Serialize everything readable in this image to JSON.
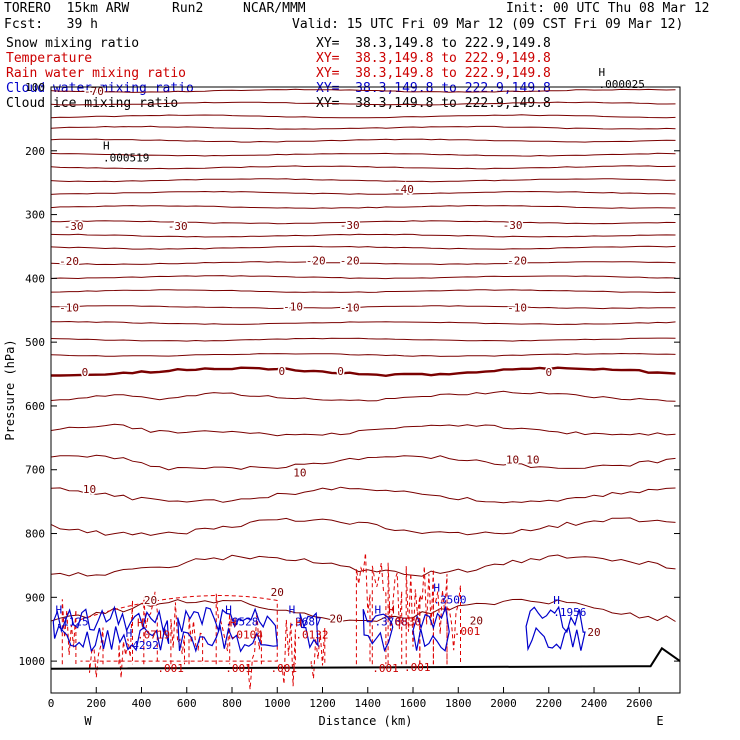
{
  "header": {
    "model": "TORERO  15km ARW",
    "run": "Run2",
    "org": "NCAR/MMM",
    "init": "Init: 00 UTC Thu 08 Mar 12",
    "fcst": "Fcst:   39 h",
    "valid": "Valid: 15 UTC Fri 09 Mar 12 (09 CST Fri 09 Mar 12)"
  },
  "fields": [
    {
      "name": "Snow mixing ratio",
      "xy": "XY=  38.3,149.8 to 222.9,149.8",
      "color": "#000000",
      "xy_color": "#000000"
    },
    {
      "name": "Temperature",
      "xy": "XY=  38.3,149.8 to 222.9,149.8",
      "color": "#cc0000",
      "xy_color": "#cc0000"
    },
    {
      "name": "Rain water mixing ratio",
      "xy": "XY=  38.3,149.8 to 222.9,149.8",
      "color": "#cc0000",
      "xy_color": "#cc0000"
    },
    {
      "name": "Cloud water mixing ratio",
      "xy": "XY=  38.3,149.8 to 222.9,149.8",
      "color": "#0000cc",
      "xy_color": "#0000cc"
    },
    {
      "name": "Cloud ice mixing ratio",
      "xy": "XY=  38.3,149.8 to 222.9,149.8",
      "color": "#000000",
      "xy_color": "#000000"
    }
  ],
  "chart_data": {
    "type": "cross-section",
    "xlabel": "Distance (km)",
    "ylabel": "Pressure (hPa)",
    "xlim": [
      0,
      2780
    ],
    "ylim": [
      1050,
      100
    ],
    "x_ticks": [
      0,
      200,
      400,
      600,
      800,
      1000,
      1200,
      1400,
      1600,
      1800,
      2000,
      2200,
      2400,
      2600
    ],
    "y_ticks": [
      100,
      200,
      300,
      400,
      500,
      600,
      700,
      800,
      900,
      1000
    ],
    "x_end_labels": {
      "left": "W",
      "right": "E"
    },
    "temperature_isotherm_pressures": [
      106,
      126,
      146,
      164,
      184,
      206,
      226,
      246,
      266,
      288,
      312,
      333,
      352,
      376,
      398,
      420,
      445,
      470,
      496,
      520,
      546,
      585,
      638,
      688,
      740,
      790,
      850,
      920
    ],
    "temperature_labels": [
      {
        "text": "-70",
        "x": 190,
        "p": 106
      },
      {
        "text": "-40",
        "x": 1560,
        "p": 260
      },
      {
        "text": "-30",
        "x": 100,
        "p": 318
      },
      {
        "text": "-30",
        "x": 560,
        "p": 318
      },
      {
        "text": "-30",
        "x": 1320,
        "p": 316
      },
      {
        "text": "-30",
        "x": 2040,
        "p": 316
      },
      {
        "text": "-20",
        "x": 80,
        "p": 373
      },
      {
        "text": "-20",
        "x": 1170,
        "p": 372
      },
      {
        "text": "-20",
        "x": 1320,
        "p": 372
      },
      {
        "text": "-20",
        "x": 2060,
        "p": 372
      },
      {
        "text": "-10",
        "x": 80,
        "p": 446
      },
      {
        "text": "-10",
        "x": 1070,
        "p": 444
      },
      {
        "text": "-10",
        "x": 1320,
        "p": 446
      },
      {
        "text": "-10",
        "x": 2060,
        "p": 446
      },
      {
        "text": "0",
        "x": 150,
        "p": 547
      },
      {
        "text": "0",
        "x": 1020,
        "p": 545
      },
      {
        "text": "0",
        "x": 1280,
        "p": 545
      },
      {
        "text": "0",
        "x": 2200,
        "p": 547
      },
      {
        "text": "10",
        "x": 1100,
        "p": 704
      },
      {
        "text": "10",
        "x": 170,
        "p": 730
      },
      {
        "text": "10",
        "x": 2040,
        "p": 684
      },
      {
        "text": "10",
        "x": 2130,
        "p": 684
      },
      {
        "text": "20",
        "x": 440,
        "p": 904
      },
      {
        "text": "20",
        "x": 1000,
        "p": 892
      },
      {
        "text": "20",
        "x": 1260,
        "p": 933
      },
      {
        "text": "20",
        "x": 1880,
        "p": 936
      },
      {
        "text": "20",
        "x": 2400,
        "p": 954
      }
    ],
    "maxima_labels": [
      {
        "text": "H",
        "value": ".000025",
        "x": 2420,
        "p": 92
      },
      {
        "text": "H",
        "value": ".000519",
        "x": 230,
        "p": 207
      },
      {
        "text": "H",
        "value": ".1125",
        "x": 20,
        "p": 935
      },
      {
        "text": "H",
        "value": ".0719",
        "x": 380,
        "p": 955
      },
      {
        "text": "H",
        "value": ".4292",
        "x": 330,
        "p": 972
      },
      {
        "text": "H",
        "value": ".8528",
        "x": 770,
        "p": 935
      },
      {
        "text": "H",
        "value": ".0104",
        "x": 790,
        "p": 955
      },
      {
        "text": "H",
        "value": ".3687",
        "x": 1050,
        "p": 935
      },
      {
        "text": "H",
        "value": ".0132",
        "x": 1080,
        "p": 955
      },
      {
        "text": "H",
        "value": ".3768",
        "x": 1430,
        "p": 935
      },
      {
        "text": "H",
        "value": ".0830",
        "x": 1490,
        "p": 935
      },
      {
        "text": "H",
        "value": ".3500",
        "x": 1690,
        "p": 900
      },
      {
        "text": "H",
        "value": ".1956",
        "x": 2220,
        "p": 920
      },
      {
        "text": "",
        "value": ".001",
        "x": 1780,
        "p": 950
      },
      {
        "text": "",
        "value": ".001",
        "x": 470,
        "p": 1008
      },
      {
        "text": "",
        "value": ".001",
        "x": 770,
        "p": 1008
      },
      {
        "text": "",
        "value": ".001",
        "x": 970,
        "p": 1008
      },
      {
        "text": "",
        "value": ".001",
        "x": 1420,
        "p": 1008
      },
      {
        "text": "",
        "value": ".001",
        "x": 1560,
        "p": 1006
      }
    ],
    "series": [
      {
        "name": "Temperature",
        "style": "solid",
        "color": "#7a0000"
      },
      {
        "name": "Rain water mixing ratio",
        "style": "dashed",
        "color": "#dd0000"
      },
      {
        "name": "Cloud water mixing ratio",
        "style": "solid",
        "color": "#0000cc"
      }
    ],
    "grid": false
  }
}
